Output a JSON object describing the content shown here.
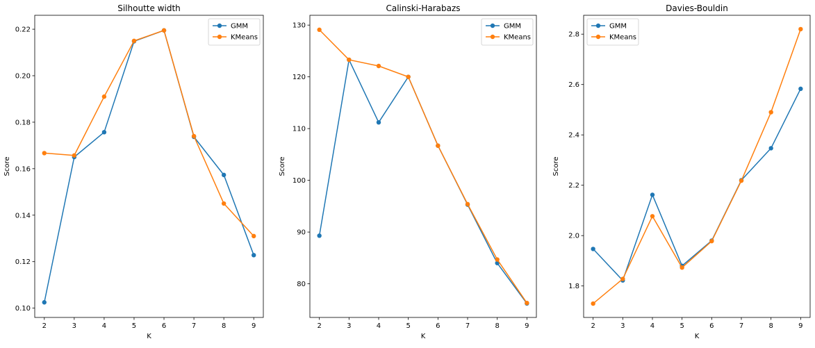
{
  "figure": {
    "series_style": [
      {
        "name": "GMM",
        "color": "#1f77b4",
        "marker": "circle"
      },
      {
        "name": "KMeans",
        "color": "#ff7f0e",
        "marker": "circle"
      }
    ]
  },
  "chart_data": [
    {
      "type": "line",
      "title": "Silhoutte width",
      "xlabel": "K",
      "ylabel": "Score",
      "x": [
        2,
        3,
        4,
        5,
        6,
        7,
        8,
        9
      ],
      "xlim": [
        1.68,
        9.32
      ],
      "ylim": [
        0.096,
        0.226
      ],
      "yticks": [
        0.1,
        0.12,
        0.14,
        0.16,
        0.18,
        0.2,
        0.22
      ],
      "ytick_labels": [
        "0.10",
        "0.12",
        "0.14",
        "0.16",
        "0.18",
        "0.20",
        "0.22"
      ],
      "grid": false,
      "legend": "top-right",
      "series": [
        {
          "name": "GMM",
          "values": [
            0.1025,
            0.165,
            0.1757,
            0.2148,
            0.2195,
            0.1737,
            0.1573,
            0.1228
          ]
        },
        {
          "name": "KMeans",
          "values": [
            0.1667,
            0.1657,
            0.191,
            0.215,
            0.2195,
            0.174,
            0.145,
            0.131
          ]
        }
      ]
    },
    {
      "type": "line",
      "title": "Calinski-Harabazs",
      "xlabel": "K",
      "ylabel": "Score",
      "x": [
        2,
        3,
        4,
        5,
        6,
        7,
        8,
        9
      ],
      "xlim": [
        1.68,
        9.32
      ],
      "ylim": [
        73.5,
        131.9
      ],
      "yticks": [
        80,
        90,
        100,
        110,
        120,
        130
      ],
      "ytick_labels": [
        "80",
        "90",
        "100",
        "110",
        "120",
        "130"
      ],
      "grid": false,
      "legend": "top-right",
      "series": [
        {
          "name": "GMM",
          "values": [
            89.3,
            123.3,
            111.2,
            120.0,
            106.7,
            95.3,
            84.0,
            76.2
          ]
        },
        {
          "name": "KMeans",
          "values": [
            129.1,
            123.3,
            122.1,
            120.0,
            106.7,
            95.4,
            84.7,
            76.3
          ]
        }
      ]
    },
    {
      "type": "line",
      "title": "Davies-Bouldin",
      "xlabel": "K",
      "ylabel": "Score",
      "x": [
        2,
        3,
        4,
        5,
        6,
        7,
        8,
        9
      ],
      "xlim": [
        1.68,
        9.32
      ],
      "ylim": [
        1.675,
        2.875
      ],
      "yticks": [
        1.8,
        2.0,
        2.2,
        2.4,
        2.6,
        2.8
      ],
      "ytick_labels": [
        "1.8",
        "2.0",
        "2.2",
        "2.4",
        "2.6",
        "2.8"
      ],
      "grid": false,
      "legend": "top-left",
      "series": [
        {
          "name": "GMM",
          "values": [
            1.947,
            1.822,
            2.162,
            1.88,
            1.98,
            2.22,
            2.347,
            2.583
          ]
        },
        {
          "name": "KMeans",
          "values": [
            1.73,
            1.828,
            2.077,
            1.873,
            1.978,
            2.218,
            2.49,
            2.82
          ]
        }
      ]
    }
  ]
}
